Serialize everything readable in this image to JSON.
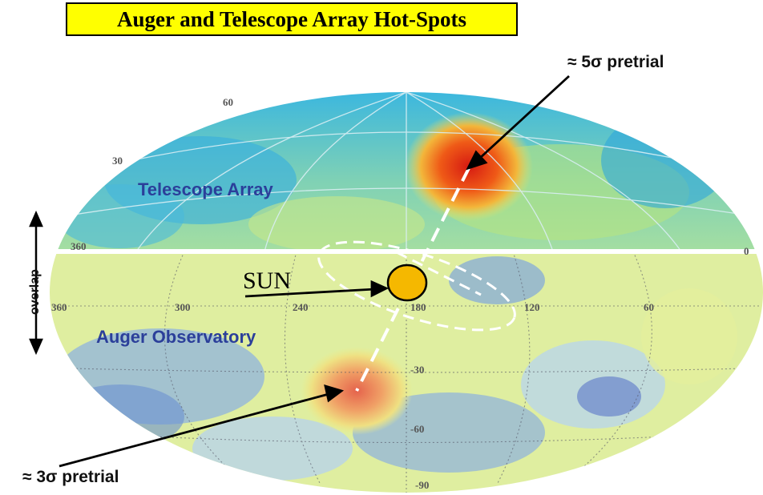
{
  "title": "Auger and Telescope Array Hot-Spots",
  "labels": {
    "top_annotation": "≈ 5σ pretrial",
    "bottom_annotation": "≈ 3σ pretrial",
    "telescope_array": "Telescope Array",
    "auger_observatory": "Auger Observatory",
    "sun": "SUN",
    "overlap": "overlap"
  },
  "tick_labels": {
    "ta": [
      "60",
      "30",
      "360",
      "0"
    ],
    "auger_ra": [
      "360",
      "300",
      "240",
      "180",
      "120",
      "60"
    ],
    "auger_dec": [
      "-30",
      "-60",
      "-90"
    ]
  },
  "colors": {
    "title_bg": "#ffff00",
    "sun_fill": "#f5b800",
    "hotspot_north": "#e02a1b",
    "hotspot_south": "#e8704a",
    "region_label": "#2b3f9a"
  }
}
